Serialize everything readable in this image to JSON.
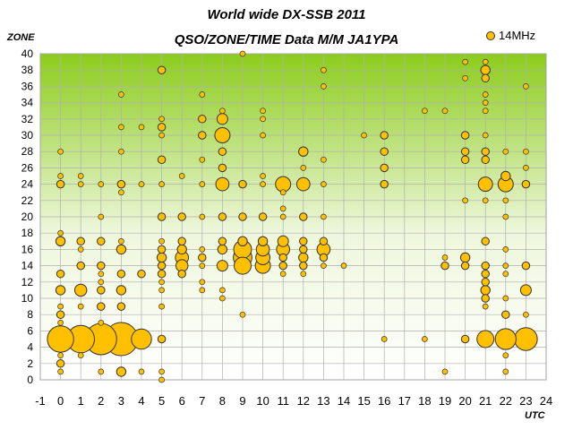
{
  "chart_data": {
    "type": "scatter",
    "title": "World wide DX-SSB 2011",
    "subtitle": "QSO/ZONE/TIME Data M/M JA1YPA",
    "xlabel": "UTC",
    "ylabel": "ZONE",
    "xlim": [
      -1,
      24
    ],
    "ylim": [
      0,
      40
    ],
    "x_ticks": [
      -1,
      0,
      1,
      2,
      3,
      4,
      5,
      6,
      7,
      8,
      9,
      10,
      11,
      12,
      13,
      14,
      15,
      16,
      17,
      18,
      19,
      20,
      21,
      22,
      23,
      24
    ],
    "y_ticks": [
      0,
      2,
      4,
      6,
      8,
      10,
      12,
      14,
      16,
      18,
      20,
      22,
      24,
      26,
      28,
      30,
      32,
      34,
      36,
      38,
      40
    ],
    "grid": true,
    "legend": "top-right",
    "marker_color": "#ffc000",
    "plot_background": "gradient green to white",
    "series": [
      {
        "name": "14MHz",
        "points": [
          [
            0,
            1,
            1
          ],
          [
            0,
            2,
            2
          ],
          [
            0,
            3,
            1
          ],
          [
            0,
            5,
            24
          ],
          [
            0,
            7,
            1
          ],
          [
            0,
            8,
            2
          ],
          [
            0,
            9,
            1
          ],
          [
            0,
            11,
            3
          ],
          [
            0,
            13,
            2
          ],
          [
            0,
            17,
            3
          ],
          [
            0,
            18,
            1
          ],
          [
            0,
            24,
            2
          ],
          [
            0,
            25,
            1
          ],
          [
            0,
            28,
            1
          ],
          [
            1,
            3,
            1
          ],
          [
            1,
            5,
            26
          ],
          [
            1,
            9,
            1
          ],
          [
            1,
            11,
            5
          ],
          [
            1,
            14,
            2
          ],
          [
            1,
            16,
            1
          ],
          [
            1,
            17,
            2
          ],
          [
            1,
            24,
            1
          ],
          [
            1,
            25,
            1
          ],
          [
            2,
            1,
            1
          ],
          [
            2,
            5,
            34
          ],
          [
            2,
            7,
            1
          ],
          [
            2,
            9,
            2
          ],
          [
            2,
            11,
            2
          ],
          [
            2,
            12,
            1
          ],
          [
            2,
            13,
            1
          ],
          [
            2,
            14,
            2
          ],
          [
            2,
            17,
            2
          ],
          [
            2,
            20,
            1
          ],
          [
            2,
            24,
            1
          ],
          [
            3,
            1,
            3
          ],
          [
            3,
            5,
            38
          ],
          [
            3,
            9,
            2
          ],
          [
            3,
            11,
            3
          ],
          [
            3,
            13,
            2
          ],
          [
            3,
            16,
            3
          ],
          [
            3,
            17,
            1
          ],
          [
            3,
            23,
            1
          ],
          [
            3,
            24,
            2
          ],
          [
            3,
            28,
            1
          ],
          [
            3,
            31,
            1
          ],
          [
            3,
            35,
            1
          ],
          [
            4,
            1,
            1
          ],
          [
            4,
            5,
            14
          ],
          [
            4,
            13,
            2
          ],
          [
            4,
            24,
            1
          ],
          [
            4,
            31,
            1
          ],
          [
            5,
            0,
            1
          ],
          [
            5,
            1,
            1
          ],
          [
            5,
            5,
            2
          ],
          [
            5,
            9,
            1
          ],
          [
            5,
            11,
            1
          ],
          [
            5,
            12,
            1
          ],
          [
            5,
            13,
            2
          ],
          [
            5,
            14,
            2
          ],
          [
            5,
            15,
            3
          ],
          [
            5,
            16,
            2
          ],
          [
            5,
            17,
            1
          ],
          [
            5,
            20,
            2
          ],
          [
            5,
            24,
            1
          ],
          [
            5,
            27,
            2
          ],
          [
            5,
            30,
            1
          ],
          [
            5,
            31,
            2
          ],
          [
            5,
            32,
            1
          ],
          [
            5,
            38,
            2
          ],
          [
            6,
            13,
            2
          ],
          [
            6,
            14,
            5
          ],
          [
            6,
            15,
            6
          ],
          [
            6,
            16,
            3
          ],
          [
            6,
            17,
            2
          ],
          [
            6,
            20,
            2
          ],
          [
            6,
            25,
            1
          ],
          [
            7,
            11,
            1
          ],
          [
            7,
            12,
            1
          ],
          [
            7,
            14,
            1
          ],
          [
            7,
            15,
            2
          ],
          [
            7,
            16,
            1
          ],
          [
            7,
            20,
            1
          ],
          [
            7,
            24,
            1
          ],
          [
            7,
            27,
            1
          ],
          [
            7,
            30,
            2
          ],
          [
            7,
            32,
            2
          ],
          [
            7,
            35,
            1
          ],
          [
            8,
            10,
            1
          ],
          [
            8,
            11,
            1
          ],
          [
            8,
            14,
            4
          ],
          [
            8,
            16,
            3
          ],
          [
            8,
            17,
            2
          ],
          [
            8,
            20,
            2
          ],
          [
            8,
            24,
            6
          ],
          [
            8,
            26,
            2
          ],
          [
            8,
            28,
            2
          ],
          [
            8,
            30,
            8
          ],
          [
            8,
            32,
            4
          ],
          [
            8,
            33,
            1
          ],
          [
            9,
            8,
            1
          ],
          [
            9,
            14,
            10
          ],
          [
            9,
            15,
            12
          ],
          [
            9,
            16,
            11
          ],
          [
            9,
            17,
            3
          ],
          [
            9,
            20,
            2
          ],
          [
            9,
            24,
            2
          ],
          [
            9,
            40,
            1
          ],
          [
            10,
            14,
            8
          ],
          [
            10,
            15,
            7
          ],
          [
            10,
            16,
            6
          ],
          [
            10,
            17,
            3
          ],
          [
            10,
            20,
            2
          ],
          [
            10,
            24,
            1
          ],
          [
            10,
            25,
            1
          ],
          [
            10,
            30,
            1
          ],
          [
            10,
            32,
            1
          ],
          [
            10,
            33,
            1
          ],
          [
            11,
            13,
            1
          ],
          [
            11,
            14,
            2
          ],
          [
            11,
            15,
            2
          ],
          [
            11,
            16,
            6
          ],
          [
            11,
            17,
            4
          ],
          [
            11,
            20,
            1
          ],
          [
            11,
            21,
            1
          ],
          [
            11,
            23,
            1
          ],
          [
            11,
            24,
            8
          ],
          [
            12,
            13,
            1
          ],
          [
            12,
            14,
            2
          ],
          [
            12,
            15,
            3
          ],
          [
            12,
            16,
            2
          ],
          [
            12,
            17,
            2
          ],
          [
            12,
            20,
            2
          ],
          [
            12,
            24,
            6
          ],
          [
            12,
            26,
            1
          ],
          [
            12,
            28,
            3
          ],
          [
            13,
            14,
            1
          ],
          [
            13,
            15,
            2
          ],
          [
            13,
            16,
            6
          ],
          [
            13,
            17,
            2
          ],
          [
            13,
            20,
            1
          ],
          [
            13,
            24,
            1
          ],
          [
            13,
            27,
            1
          ],
          [
            13,
            36,
            1
          ],
          [
            13,
            38,
            1
          ],
          [
            14,
            14,
            1
          ],
          [
            15,
            30,
            1
          ],
          [
            16,
            5,
            1
          ],
          [
            16,
            24,
            2
          ],
          [
            16,
            26,
            2
          ],
          [
            16,
            28,
            2
          ],
          [
            16,
            30,
            2
          ],
          [
            18,
            5,
            1
          ],
          [
            18,
            33,
            1
          ],
          [
            19,
            1,
            1
          ],
          [
            19,
            14,
            2
          ],
          [
            19,
            15,
            1
          ],
          [
            19,
            33,
            1
          ],
          [
            20,
            5,
            2
          ],
          [
            20,
            14,
            2
          ],
          [
            20,
            15,
            3
          ],
          [
            20,
            22,
            1
          ],
          [
            20,
            27,
            2
          ],
          [
            20,
            28,
            2
          ],
          [
            20,
            30,
            2
          ],
          [
            20,
            37,
            1
          ],
          [
            20,
            39,
            1
          ],
          [
            21,
            5,
            10
          ],
          [
            21,
            9,
            1
          ],
          [
            21,
            10,
            2
          ],
          [
            21,
            11,
            3
          ],
          [
            21,
            12,
            2
          ],
          [
            21,
            13,
            2
          ],
          [
            21,
            14,
            2
          ],
          [
            21,
            17,
            2
          ],
          [
            21,
            22,
            1
          ],
          [
            21,
            24,
            7
          ],
          [
            21,
            27,
            2
          ],
          [
            21,
            28,
            2
          ],
          [
            21,
            30,
            1
          ],
          [
            21,
            33,
            1
          ],
          [
            21,
            34,
            1
          ],
          [
            21,
            35,
            1
          ],
          [
            21,
            37,
            2
          ],
          [
            21,
            38,
            3
          ],
          [
            21,
            39,
            1
          ],
          [
            22,
            1,
            1
          ],
          [
            22,
            3,
            1
          ],
          [
            22,
            5,
            15
          ],
          [
            22,
            8,
            2
          ],
          [
            22,
            10,
            1
          ],
          [
            22,
            13,
            1
          ],
          [
            22,
            14,
            1
          ],
          [
            22,
            16,
            1
          ],
          [
            22,
            20,
            1
          ],
          [
            22,
            22,
            1
          ],
          [
            22,
            24,
            8
          ],
          [
            22,
            25,
            3
          ],
          [
            22,
            28,
            1
          ],
          [
            23,
            5,
            18
          ],
          [
            23,
            8,
            1
          ],
          [
            23,
            11,
            4
          ],
          [
            23,
            14,
            2
          ],
          [
            23,
            24,
            2
          ],
          [
            23,
            26,
            1
          ],
          [
            23,
            28,
            1
          ],
          [
            23,
            36,
            1
          ]
        ]
      }
    ]
  }
}
